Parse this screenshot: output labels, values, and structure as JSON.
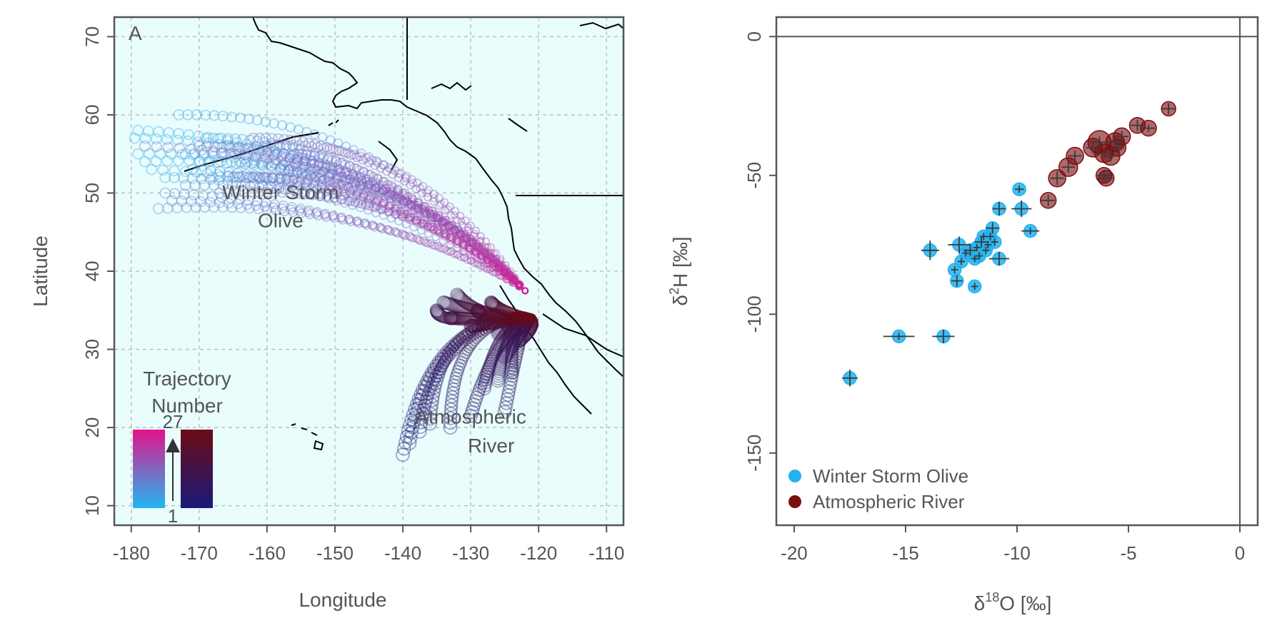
{
  "chart_data": [
    {
      "type": "scatter",
      "panel_label": "A",
      "xlabel": "Longitude",
      "ylabel": "Latitude",
      "xlim": [
        -182.5,
        -107.5
      ],
      "ylim": [
        7.5,
        72.5
      ],
      "x_ticks": [
        -180,
        -170,
        -160,
        -150,
        -140,
        -130,
        -120,
        -110
      ],
      "y_ticks": [
        10,
        20,
        30,
        40,
        50,
        60,
        70
      ],
      "x_tick_labels": [
        "-180",
        "-170",
        "-160",
        "-150",
        "-140",
        "-130",
        "-120",
        "-110"
      ],
      "y_tick_labels": [
        "10",
        "20",
        "30",
        "40",
        "50",
        "60",
        "70"
      ],
      "grid": true,
      "background": "#e9fdfd",
      "annotations": [
        {
          "text": "Winter Storm",
          "x": -158,
          "y": 49.2
        },
        {
          "text": "Olive",
          "x": -158,
          "y": 45.6
        },
        {
          "text": "Atmospheric",
          "x": -130,
          "y": 20.5
        },
        {
          "text": "River",
          "x": -127,
          "y": 16.8
        }
      ],
      "colorbar": {
        "title_line1": "Trajectory",
        "title_line2": "Number",
        "top_label": "27",
        "bottom_label": "1",
        "storm_colors": [
          "#e2138a",
          "#22b6f2"
        ],
        "river_colors": [
          "#6c0b14",
          "#1a1a7a"
        ]
      },
      "series": [
        {
          "name": "Winter Storm Olive",
          "kind": "trajectories",
          "start_color": "#22b6f2",
          "end_color": "#e2138a",
          "end_point": [
            -122,
            37.5
          ],
          "starts": [
            [
              -179,
              58
            ],
            [
              -179.5,
              57
            ],
            [
              -179,
              55
            ],
            [
              -178,
              54
            ],
            [
              -177,
              53
            ],
            [
              -175,
              52
            ],
            [
              -173,
              60
            ],
            [
              -172,
              55
            ],
            [
              -171,
              53
            ],
            [
              -170,
              54
            ],
            [
              -169,
              57
            ],
            [
              -168,
              52
            ],
            [
              -166,
              56
            ],
            [
              -164,
              54
            ],
            [
              -162,
              52
            ],
            [
              -176,
              48
            ],
            [
              -175,
              50
            ],
            [
              -174,
              49
            ],
            [
              -172,
              51
            ],
            [
              -160,
              56
            ],
            [
              -158,
              53
            ],
            [
              -156,
              55
            ],
            [
              -162,
              57
            ],
            [
              -167,
              50
            ],
            [
              -178,
              56
            ],
            [
              -170,
              56
            ],
            [
              -165,
              52
            ]
          ]
        },
        {
          "name": "Atmospheric River",
          "kind": "trajectories",
          "start_color": "#1a1a7a",
          "end_color": "#6c0b14",
          "end_point": [
            -121,
            34
          ],
          "starts": [
            [
              -140,
              16.5
            ],
            [
              -139,
              18
            ],
            [
              -137.5,
              19.5
            ],
            [
              -136,
              20.5
            ],
            [
              -133,
              20
            ],
            [
              -130,
              21.5
            ],
            [
              -125,
              22
            ],
            [
              -128,
              25
            ],
            [
              -126,
              26
            ],
            [
              -124,
              27
            ],
            [
              -125,
              29
            ],
            [
              -123,
              31
            ],
            [
              -126,
              32
            ],
            [
              -133,
              34
            ],
            [
              -135,
              35
            ],
            [
              -134,
              36
            ],
            [
              -132,
              37
            ],
            [
              -130,
              33
            ],
            [
              -127,
              36
            ],
            [
              -129,
              35
            ]
          ]
        }
      ]
    },
    {
      "type": "scatter",
      "xlabel_main": "δ",
      "xlabel_sup": "18",
      "xlabel_rest": "O [‰]",
      "ylabel_main": "δ",
      "ylabel_sup": "2",
      "ylabel_rest": "H [‰]",
      "xlim": [
        -20.8,
        0.8
      ],
      "ylim": [
        -176,
        7
      ],
      "x_ticks": [
        -20,
        -15,
        -10,
        -5,
        0
      ],
      "y_ticks": [
        0,
        -50,
        -100,
        -150
      ],
      "x_tick_labels": [
        "-20",
        "-15",
        "-10",
        "-5",
        "0"
      ],
      "y_tick_labels": [
        "0",
        "-50",
        "-100",
        "-150"
      ],
      "reference_lines": {
        "x": 0,
        "y": 0
      },
      "grid": false,
      "legend_position": "bottom-left",
      "series": [
        {
          "name": "Winter Storm Olive",
          "color": "#22b2f0",
          "points": [
            {
              "x": -17.5,
              "y": -123,
              "ex": 0.35,
              "ey": 3
            },
            {
              "x": -15.3,
              "y": -108,
              "ex": 0.7,
              "ey": 0
            },
            {
              "x": -13.3,
              "y": -108,
              "ex": 0.5,
              "ey": 2.5
            },
            {
              "x": -13.9,
              "y": -77,
              "ex": 0.4,
              "ey": 3.5
            },
            {
              "x": -12.8,
              "y": -84,
              "ex": 0,
              "ey": 0
            },
            {
              "x": -12.7,
              "y": -88,
              "ex": 0.25,
              "ey": 2
            },
            {
              "x": -12.6,
              "y": -75,
              "ex": 0.5,
              "ey": 3
            },
            {
              "x": -12.5,
              "y": -81,
              "ex": 0,
              "ey": 0
            },
            {
              "x": -12.3,
              "y": -78,
              "ex": 0,
              "ey": 0
            },
            {
              "x": -12.1,
              "y": -77,
              "ex": 0.3,
              "ey": 2
            },
            {
              "x": -11.9,
              "y": -80,
              "ex": 0,
              "ey": 0
            },
            {
              "x": -11.9,
              "y": -90,
              "ex": 0,
              "ey": 0
            },
            {
              "x": -11.8,
              "y": -76,
              "ex": 0,
              "ey": 0
            },
            {
              "x": -11.7,
              "y": -79,
              "ex": 0,
              "ey": 0
            },
            {
              "x": -11.6,
              "y": -74,
              "ex": 0.3,
              "ey": 2
            },
            {
              "x": -11.5,
              "y": -72,
              "ex": 0,
              "ey": 0
            },
            {
              "x": -11.4,
              "y": -77,
              "ex": 0,
              "ey": 0
            },
            {
              "x": -11.3,
              "y": -75,
              "ex": 0,
              "ey": 0
            },
            {
              "x": -11.2,
              "y": -72,
              "ex": 0,
              "ey": 0
            },
            {
              "x": -11.1,
              "y": -69,
              "ex": 0.3,
              "ey": 2
            },
            {
              "x": -11.0,
              "y": -74,
              "ex": 0,
              "ey": 0
            },
            {
              "x": -10.8,
              "y": -80,
              "ex": 0.45,
              "ey": 2.5
            },
            {
              "x": -10.8,
              "y": -62,
              "ex": 0.3,
              "ey": 2.5
            },
            {
              "x": -9.9,
              "y": -55,
              "ex": 0.2,
              "ey": 0
            },
            {
              "x": -9.8,
              "y": -62,
              "ex": 0.45,
              "ey": 3
            },
            {
              "x": -9.4,
              "y": -70,
              "ex": 0.4,
              "ey": 0
            }
          ]
        },
        {
          "name": "Atmospheric River",
          "color": "#7a0f12",
          "points": [
            {
              "x": -8.6,
              "y": -59,
              "ex": 0.3,
              "ey": 2,
              "r": 11
            },
            {
              "x": -8.2,
              "y": -51,
              "ex": 0.3,
              "ey": 2.5,
              "r": 12
            },
            {
              "x": -7.7,
              "y": -47,
              "ex": 0.3,
              "ey": 2,
              "r": 13
            },
            {
              "x": -7.4,
              "y": -43,
              "ex": 0.3,
              "ey": 2,
              "r": 12
            },
            {
              "x": -6.6,
              "y": -40,
              "ex": 0.3,
              "ey": 2,
              "r": 13
            },
            {
              "x": -6.3,
              "y": -38,
              "ex": 0.4,
              "ey": 2,
              "r": 16
            },
            {
              "x": -6.1,
              "y": -50,
              "ex": 0.3,
              "ey": 2,
              "r": 11
            },
            {
              "x": -6.0,
              "y": -51,
              "ex": 0.3,
              "ey": 0,
              "r": 11
            },
            {
              "x": -6.1,
              "y": -42,
              "ex": 0.3,
              "ey": 2,
              "r": 13
            },
            {
              "x": -5.8,
              "y": -43,
              "ex": 0.3,
              "ey": 2,
              "r": 13
            },
            {
              "x": -5.6,
              "y": -38,
              "ex": 0.3,
              "ey": 2,
              "r": 13
            },
            {
              "x": -5.5,
              "y": -40,
              "ex": 0.3,
              "ey": 2,
              "r": 12
            },
            {
              "x": -5.3,
              "y": -36,
              "ex": 0.3,
              "ey": 2,
              "r": 12
            },
            {
              "x": -4.6,
              "y": -32,
              "ex": 0.3,
              "ey": 2,
              "r": 11
            },
            {
              "x": -4.1,
              "y": -33,
              "ex": 0.3,
              "ey": 0,
              "r": 11
            },
            {
              "x": -3.2,
              "y": -26,
              "ex": 0.3,
              "ey": 2,
              "r": 10
            }
          ]
        }
      ]
    }
  ]
}
